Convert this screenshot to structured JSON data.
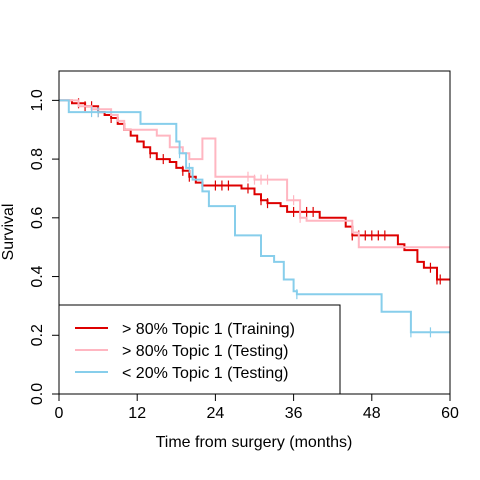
{
  "chart_data": {
    "type": "line",
    "title": "",
    "xlabel": "Time from surgery (months)",
    "ylabel": "Survival",
    "xlim": [
      0,
      60
    ],
    "ylim": [
      0,
      1.1
    ],
    "x_ticks": [
      0,
      12,
      24,
      36,
      48,
      60
    ],
    "x_tick_labels": [
      "0",
      "12",
      "24",
      "36",
      "48",
      "60"
    ],
    "y_ticks": [
      0,
      0.2,
      0.4,
      0.6,
      0.8,
      1.0
    ],
    "y_tick_labels": [
      "0.0",
      "0.2",
      "0.4",
      "0.6",
      "0.8",
      "1.0"
    ],
    "grid": false,
    "legend_position": "bottom-left",
    "series": [
      {
        "name": "> 80% Topic 1 (Training)",
        "color": "#dd0000",
        "steps": [
          [
            0,
            1.0
          ],
          [
            2,
            0.99
          ],
          [
            4,
            0.98
          ],
          [
            6,
            0.96
          ],
          [
            7,
            0.95
          ],
          [
            8,
            0.94
          ],
          [
            9,
            0.92
          ],
          [
            10,
            0.9
          ],
          [
            11,
            0.88
          ],
          [
            12,
            0.86
          ],
          [
            13,
            0.84
          ],
          [
            14,
            0.82
          ],
          [
            15,
            0.8
          ],
          [
            17,
            0.79
          ],
          [
            18,
            0.77
          ],
          [
            19,
            0.76
          ],
          [
            20,
            0.74
          ],
          [
            21,
            0.72
          ],
          [
            22,
            0.71
          ],
          [
            26,
            0.71
          ],
          [
            28,
            0.7
          ],
          [
            30,
            0.68
          ],
          [
            31,
            0.66
          ],
          [
            32,
            0.65
          ],
          [
            34,
            0.64
          ],
          [
            35,
            0.62
          ],
          [
            38,
            0.62
          ],
          [
            40,
            0.6
          ],
          [
            44,
            0.57
          ],
          [
            45,
            0.54
          ],
          [
            52,
            0.51
          ],
          [
            53,
            0.49
          ],
          [
            55,
            0.45
          ],
          [
            56,
            0.43
          ],
          [
            58,
            0.39
          ],
          [
            60,
            0.39
          ]
        ],
        "censor_times": [
          3,
          4,
          5,
          6,
          8,
          14,
          16,
          19,
          20,
          24,
          25,
          26,
          29,
          31,
          32,
          36,
          38,
          39,
          45,
          46,
          47,
          48,
          49,
          50,
          57,
          58,
          58.5
        ]
      },
      {
        "name": "> 80% Topic 1 (Testing)",
        "color": "#ffb6c1",
        "steps": [
          [
            0,
            1.0
          ],
          [
            3,
            0.98
          ],
          [
            5,
            0.97
          ],
          [
            8,
            0.95
          ],
          [
            9,
            0.93
          ],
          [
            10,
            0.9
          ],
          [
            15,
            0.88
          ],
          [
            17,
            0.84
          ],
          [
            19,
            0.82
          ],
          [
            20,
            0.8
          ],
          [
            22,
            0.87
          ],
          [
            24,
            0.74
          ],
          [
            29,
            0.74
          ],
          [
            30,
            0.73
          ],
          [
            35,
            0.66
          ],
          [
            37,
            0.6
          ],
          [
            38,
            0.59
          ],
          [
            43,
            0.59
          ],
          [
            45,
            0.55
          ],
          [
            46,
            0.5
          ],
          [
            60,
            0.5
          ]
        ],
        "censor_times": [
          29,
          30,
          31,
          32,
          36,
          37
        ]
      },
      {
        "name": "< 20% Topic 1 (Testing)",
        "color": "#87ceeb",
        "steps": [
          [
            0,
            1.0
          ],
          [
            1.5,
            0.96
          ],
          [
            12.5,
            0.92
          ],
          [
            18,
            0.86
          ],
          [
            18.5,
            0.82
          ],
          [
            19.5,
            0.77
          ],
          [
            20.5,
            0.73
          ],
          [
            22,
            0.69
          ],
          [
            23,
            0.64
          ],
          [
            27,
            0.54
          ],
          [
            31,
            0.47
          ],
          [
            33,
            0.45
          ],
          [
            34.5,
            0.39
          ],
          [
            36,
            0.35
          ],
          [
            36.5,
            0.34
          ],
          [
            49.5,
            0.28
          ],
          [
            54,
            0.21
          ],
          [
            60,
            0.21
          ]
        ],
        "censor_times": [
          5,
          6,
          18.5,
          20,
          36.5,
          54,
          57
        ]
      }
    ]
  }
}
